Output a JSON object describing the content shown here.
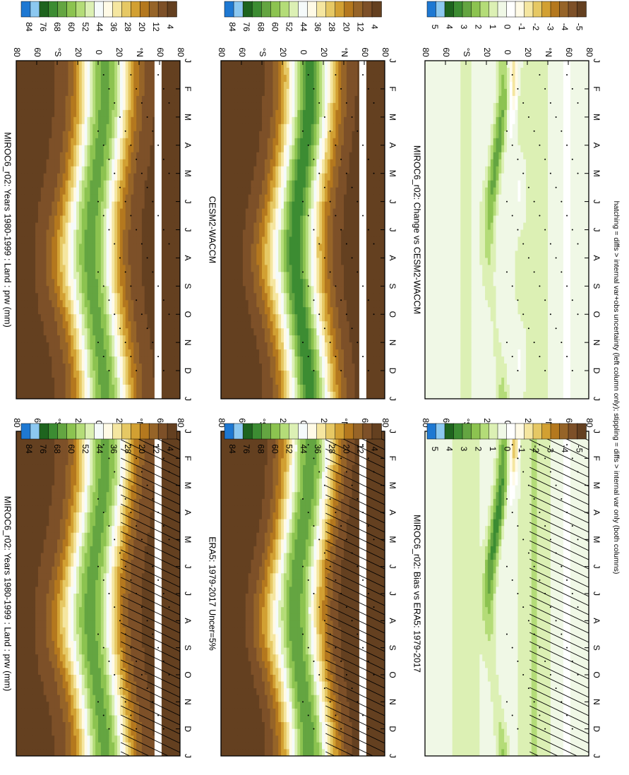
{
  "figure": {
    "footer": "hatching = diffs > internal var+obs uncertainty (left column only); stippling = diffs > internal var only (both columns)"
  },
  "palettes": {
    "abs": [
      "#1e78d2",
      "#8cc8f0",
      "#1e641e",
      "#3c8c32",
      "#64a541",
      "#8cc350",
      "#b4dc78",
      "#dcf0b4",
      "#f5fafa",
      "#fffae6",
      "#f5e6a0",
      "#e6c864",
      "#d2a032",
      "#b4781e",
      "#966428",
      "#7d5028",
      "#644020"
    ],
    "diff": [
      "#1e78d2",
      "#8cc8f0",
      "#1e641e",
      "#3c8c32",
      "#64a541",
      "#8cc350",
      "#b4dc78",
      "#dcf0b4",
      "#f0f8e6",
      "#ffffff",
      "#fffae6",
      "#f5e6a0",
      "#e6c864",
      "#d2a032",
      "#b4781e",
      "#966428",
      "#7d5028",
      "#644020"
    ]
  },
  "chart_data": [
    {
      "type": "heatmap",
      "title": "MIROC6_r02: Years 1980-1999 : Land : prw (mm)",
      "x_ticks": [
        "J",
        "F",
        "M",
        "A",
        "M",
        "J",
        "J",
        "A",
        "S",
        "O",
        "N",
        "D",
        "J"
      ],
      "y_ticks": [
        "80",
        "60",
        "°N",
        "20",
        "0",
        "20",
        "°S",
        "60",
        "80"
      ],
      "ylim": [
        -90,
        90
      ],
      "colorbar_labels": [
        "84",
        "76",
        "68",
        "60",
        "52",
        "44",
        "36",
        "28",
        "20",
        "12",
        "4"
      ],
      "palette": "abs",
      "hatching": true,
      "stippling": true,
      "field": "abs",
      "trop_boost": 0,
      "peak_boost": 0
    },
    {
      "type": "heatmap",
      "title": "MIROC6_r02: Years 1980-1999 : Land : prw (mm)",
      "x_ticks": [
        "J",
        "F",
        "M",
        "A",
        "M",
        "J",
        "J",
        "A",
        "S",
        "O",
        "N",
        "D",
        "J"
      ],
      "y_ticks": [
        "80",
        "60",
        "°N",
        "20",
        "0",
        "20",
        "°S",
        "60",
        "80"
      ],
      "ylim": [
        -90,
        90
      ],
      "colorbar_labels": [
        "84",
        "76",
        "68",
        "60",
        "52",
        "44",
        "36",
        "28",
        "20",
        "12",
        "4"
      ],
      "palette": "abs",
      "hatching": false,
      "stippling": true,
      "field": "abs",
      "trop_boost": 0,
      "peak_boost": 0
    },
    {
      "type": "heatmap",
      "title": "ERA5: 1979-2017 Uncer=5%",
      "x_ticks": [
        "J",
        "F",
        "M",
        "A",
        "M",
        "J",
        "J",
        "A",
        "S",
        "O",
        "N",
        "D",
        "J"
      ],
      "y_ticks": [
        "80",
        "60",
        "°N",
        "20",
        "0",
        "20",
        "°S",
        "60",
        "80"
      ],
      "ylim": [
        -90,
        90
      ],
      "colorbar_labels": [
        "84",
        "76",
        "68",
        "60",
        "52",
        "44",
        "36",
        "28",
        "20",
        "12",
        "4"
      ],
      "palette": "abs",
      "hatching": true,
      "stippling": true,
      "field": "abs",
      "trop_boost": -2,
      "peak_boost": 1
    },
    {
      "type": "heatmap",
      "title": "CESM2-WACCM",
      "x_ticks": [
        "J",
        "F",
        "M",
        "A",
        "M",
        "J",
        "J",
        "A",
        "S",
        "O",
        "N",
        "D",
        "J"
      ],
      "y_ticks": [
        "80",
        "60",
        "°N",
        "20",
        "0",
        "20",
        "°S",
        "60",
        "80"
      ],
      "ylim": [
        -90,
        90
      ],
      "colorbar_labels": [
        "84",
        "76",
        "68",
        "60",
        "52",
        "44",
        "36",
        "28",
        "20",
        "12",
        "4"
      ],
      "palette": "abs",
      "hatching": false,
      "stippling": true,
      "field": "abs",
      "trop_boost": -1,
      "peak_boost": 2
    },
    {
      "type": "heatmap",
      "title": "MIROC6_r02: Bias vs ERA5: 1979-2017",
      "x_ticks": [
        "J",
        "F",
        "M",
        "A",
        "M",
        "J",
        "J",
        "A",
        "S",
        "O",
        "N",
        "D",
        "J"
      ],
      "y_ticks": [
        "80",
        "60",
        "°N",
        "20",
        "0",
        "20",
        "°S",
        "60",
        "80"
      ],
      "ylim": [
        -90,
        90
      ],
      "colorbar_labels": [
        "5",
        "4",
        "3",
        "2",
        "1",
        "0",
        "-1",
        "-2",
        "-3",
        "-4",
        "-5"
      ],
      "palette": "diff",
      "hatching": true,
      "stippling": true,
      "field": "diff",
      "trop_boost": 0,
      "peak_boost": 0
    },
    {
      "type": "heatmap",
      "title": "MIROC6_r02: Change vs CESM2-WACCM",
      "x_ticks": [
        "J",
        "F",
        "M",
        "A",
        "M",
        "J",
        "J",
        "A",
        "S",
        "O",
        "N",
        "D",
        "J"
      ],
      "y_ticks": [
        "80",
        "60",
        "°N",
        "20",
        "0",
        "20",
        "°S",
        "60",
        "80"
      ],
      "ylim": [
        -90,
        90
      ],
      "colorbar_labels": [
        "5",
        "4",
        "3",
        "2",
        "1",
        "0",
        "-1",
        "-2",
        "-3",
        "-4",
        "-5"
      ],
      "palette": "diff",
      "hatching": false,
      "stippling": true,
      "field": "diff2",
      "trop_boost": 0,
      "peak_boost": 0
    }
  ]
}
